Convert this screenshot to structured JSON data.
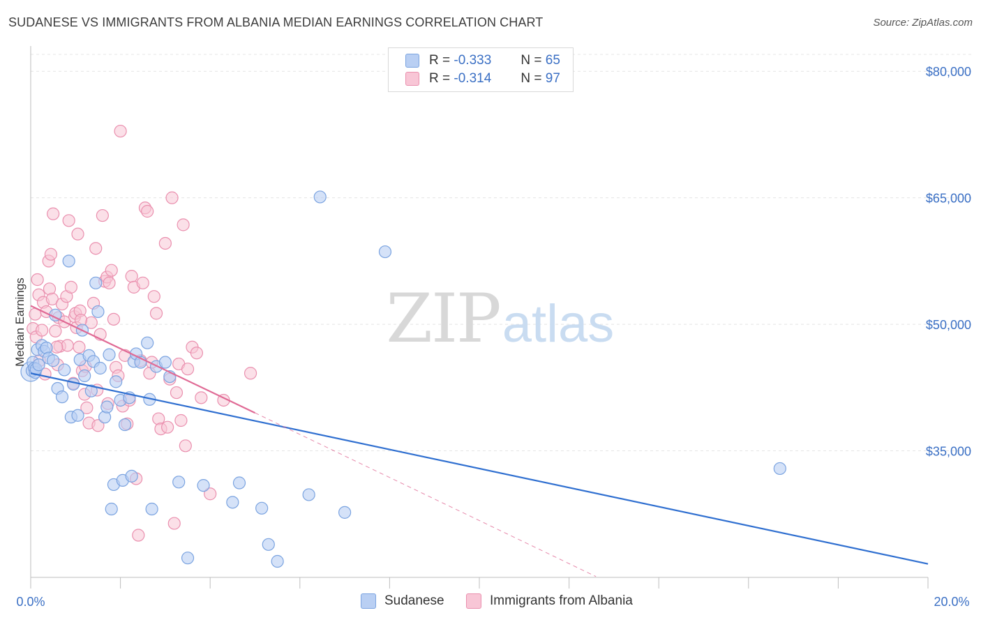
{
  "title": "SUDANESE VS IMMIGRANTS FROM ALBANIA MEDIAN EARNINGS CORRELATION CHART",
  "source": "Source: ZipAtlas.com",
  "watermark": {
    "zip": "ZIP",
    "atlas": "atlas"
  },
  "legend": {
    "rows": [
      {
        "r_label": "R =",
        "r_value": "-0.333",
        "n_label": "N =",
        "n_value": "65"
      },
      {
        "r_label": "R =",
        "r_value": "-0.314",
        "n_label": "N =",
        "n_value": "97"
      }
    ]
  },
  "bottom_legend": {
    "series1": "Sudanese",
    "series2": "Immigrants from Albania"
  },
  "colors": {
    "blue_fill": "#b9cff3",
    "blue_stroke": "#7aa3e0",
    "blue_line": "#2f6fd0",
    "pink_fill": "#f8c6d6",
    "pink_stroke": "#ea8fae",
    "pink_line": "#e06a95",
    "grid": "#e4e4e4",
    "tick_text": "#3a6fc4"
  },
  "chart_data": {
    "type": "scatter",
    "title": "SUDANESE VS IMMIGRANTS FROM ALBANIA MEDIAN EARNINGS CORRELATION CHART",
    "xlabel": "",
    "ylabel": "Median Earnings",
    "xlim": [
      0,
      20
    ],
    "ylim": [
      20000,
      82000
    ],
    "x_tick_labels": [
      "0.0%",
      "20.0%"
    ],
    "y_ticks": [
      35000,
      50000,
      65000,
      80000
    ],
    "y_tick_labels": [
      "$35,000",
      "$50,000",
      "$65,000",
      "$80,000"
    ],
    "series": [
      {
        "name": "Sudanese",
        "r": -0.333,
        "n": 65,
        "trend": {
          "x": [
            0,
            20
          ],
          "y": [
            44200,
            21600
          ]
        },
        "points": [
          [
            0.03,
            44500
          ],
          [
            0.05,
            45500
          ],
          [
            0.08,
            44800
          ],
          [
            0.1,
            44300
          ],
          [
            0.12,
            44700
          ],
          [
            0.15,
            47000
          ],
          [
            0.18,
            45200
          ],
          [
            0.25,
            47500
          ],
          [
            0.3,
            46800
          ],
          [
            0.35,
            47200
          ],
          [
            0.4,
            46000
          ],
          [
            0.5,
            45700
          ],
          [
            0.55,
            51100
          ],
          [
            0.6,
            42400
          ],
          [
            0.7,
            41400
          ],
          [
            0.75,
            44600
          ],
          [
            0.85,
            57500
          ],
          [
            0.9,
            39000
          ],
          [
            0.95,
            42900
          ],
          [
            1.05,
            39200
          ],
          [
            1.1,
            45800
          ],
          [
            1.15,
            49300
          ],
          [
            1.2,
            43900
          ],
          [
            1.3,
            46300
          ],
          [
            1.35,
            42100
          ],
          [
            1.4,
            45600
          ],
          [
            1.45,
            54900
          ],
          [
            1.5,
            51500
          ],
          [
            1.55,
            44800
          ],
          [
            1.65,
            39000
          ],
          [
            1.7,
            40200
          ],
          [
            1.75,
            46400
          ],
          [
            1.8,
            28100
          ],
          [
            1.85,
            31000
          ],
          [
            1.9,
            43200
          ],
          [
            2.0,
            41000
          ],
          [
            2.05,
            31500
          ],
          [
            2.1,
            38100
          ],
          [
            2.2,
            41300
          ],
          [
            2.25,
            32000
          ],
          [
            2.3,
            45600
          ],
          [
            2.35,
            46500
          ],
          [
            2.45,
            45500
          ],
          [
            2.6,
            47800
          ],
          [
            2.65,
            41100
          ],
          [
            2.7,
            28100
          ],
          [
            2.8,
            45000
          ],
          [
            3.0,
            45500
          ],
          [
            3.1,
            43800
          ],
          [
            3.3,
            31300
          ],
          [
            3.5,
            22300
          ],
          [
            3.85,
            30900
          ],
          [
            4.5,
            28900
          ],
          [
            4.65,
            31200
          ],
          [
            5.15,
            28200
          ],
          [
            5.3,
            23900
          ],
          [
            5.5,
            21900
          ],
          [
            6.2,
            29800
          ],
          [
            6.45,
            65100
          ],
          [
            7.0,
            27700
          ],
          [
            7.9,
            58600
          ],
          [
            16.7,
            32900
          ]
        ]
      },
      {
        "name": "Immigrants from Albania",
        "r": -0.314,
        "n": 97,
        "trend": {
          "x": [
            0,
            5.0
          ],
          "y": [
            52200,
            39500
          ]
        },
        "trend_dashed": {
          "x": [
            5.0,
            12.6
          ],
          "y": [
            39500,
            20100
          ]
        },
        "points": [
          [
            0.05,
            49500
          ],
          [
            0.1,
            51200
          ],
          [
            0.12,
            48500
          ],
          [
            0.15,
            55300
          ],
          [
            0.18,
            53500
          ],
          [
            0.2,
            45700
          ],
          [
            0.25,
            49300
          ],
          [
            0.28,
            52600
          ],
          [
            0.32,
            44100
          ],
          [
            0.35,
            51500
          ],
          [
            0.4,
            57500
          ],
          [
            0.42,
            54200
          ],
          [
            0.45,
            58300
          ],
          [
            0.48,
            53000
          ],
          [
            0.5,
            63100
          ],
          [
            0.55,
            49200
          ],
          [
            0.6,
            45200
          ],
          [
            0.62,
            50800
          ],
          [
            0.65,
            47400
          ],
          [
            0.7,
            52400
          ],
          [
            0.75,
            50300
          ],
          [
            0.8,
            53300
          ],
          [
            0.82,
            47500
          ],
          [
            0.85,
            62300
          ],
          [
            0.9,
            54400
          ],
          [
            0.95,
            43000
          ],
          [
            0.98,
            50900
          ],
          [
            1.0,
            51300
          ],
          [
            1.02,
            49600
          ],
          [
            1.05,
            60700
          ],
          [
            1.08,
            47300
          ],
          [
            1.1,
            51600
          ],
          [
            1.15,
            44500
          ],
          [
            1.2,
            41700
          ],
          [
            1.22,
            45000
          ],
          [
            1.25,
            40100
          ],
          [
            1.3,
            38300
          ],
          [
            1.35,
            50200
          ],
          [
            1.4,
            52500
          ],
          [
            1.45,
            59000
          ],
          [
            1.5,
            38000
          ],
          [
            1.55,
            48800
          ],
          [
            1.6,
            62900
          ],
          [
            1.65,
            55100
          ],
          [
            1.7,
            55600
          ],
          [
            1.75,
            54900
          ],
          [
            1.8,
            56400
          ],
          [
            1.85,
            50600
          ],
          [
            1.9,
            44900
          ],
          [
            1.95,
            43900
          ],
          [
            2.0,
            72900
          ],
          [
            2.05,
            40300
          ],
          [
            2.1,
            46300
          ],
          [
            2.15,
            38200
          ],
          [
            2.2,
            41000
          ],
          [
            2.25,
            55700
          ],
          [
            2.3,
            54400
          ],
          [
            2.35,
            31700
          ],
          [
            2.4,
            25000
          ],
          [
            2.45,
            45700
          ],
          [
            2.5,
            54900
          ],
          [
            2.55,
            63800
          ],
          [
            2.6,
            63400
          ],
          [
            2.65,
            44200
          ],
          [
            2.7,
            45500
          ],
          [
            2.75,
            53300
          ],
          [
            2.8,
            51300
          ],
          [
            2.85,
            38800
          ],
          [
            2.9,
            37600
          ],
          [
            3.0,
            59600
          ],
          [
            3.05,
            37800
          ],
          [
            3.1,
            43500
          ],
          [
            3.15,
            65000
          ],
          [
            3.2,
            26400
          ],
          [
            3.25,
            41900
          ],
          [
            3.3,
            45300
          ],
          [
            3.35,
            38600
          ],
          [
            3.4,
            61800
          ],
          [
            3.45,
            35600
          ],
          [
            3.5,
            44700
          ],
          [
            3.6,
            47300
          ],
          [
            3.7,
            46600
          ],
          [
            3.8,
            41300
          ],
          [
            4.0,
            29900
          ],
          [
            4.3,
            41000
          ],
          [
            4.9,
            44200
          ],
          [
            1.12,
            50500
          ],
          [
            0.58,
            47300
          ],
          [
            1.48,
            42200
          ],
          [
            1.72,
            40600
          ]
        ]
      }
    ]
  }
}
